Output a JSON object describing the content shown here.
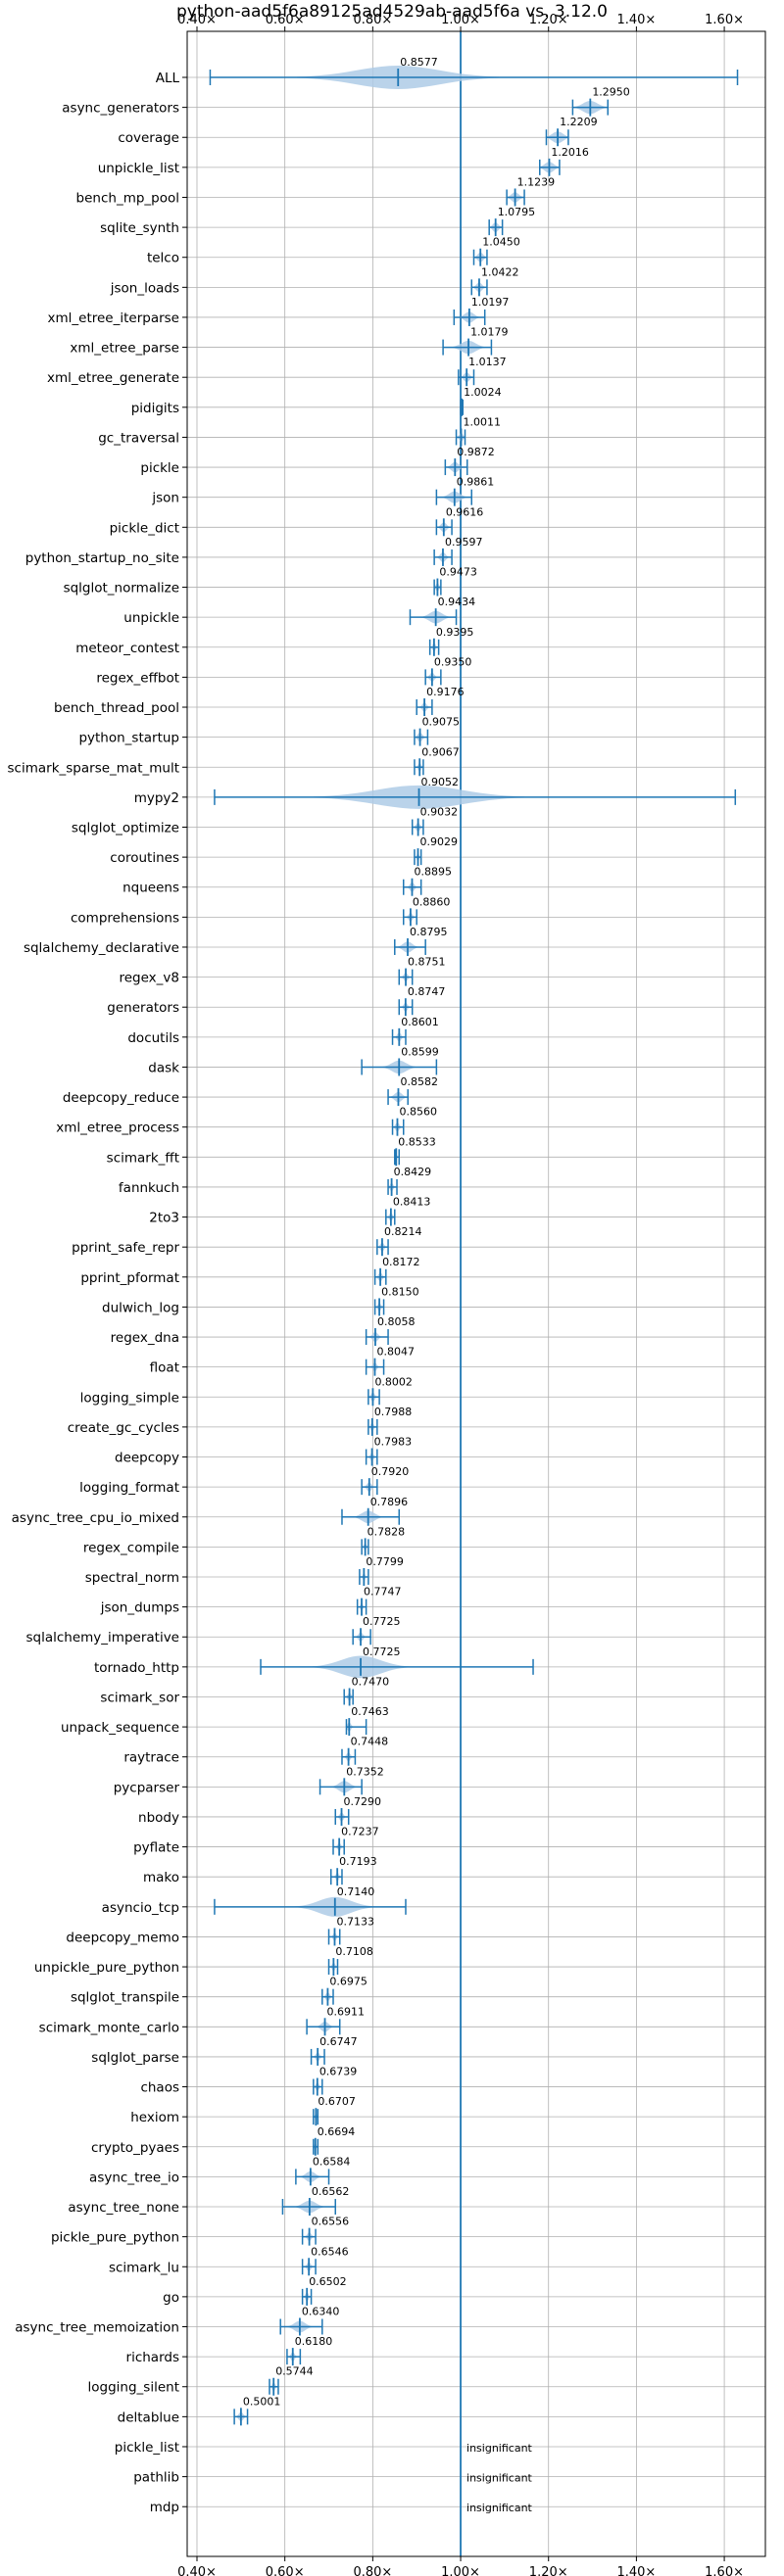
{
  "chart_data": {
    "type": "violin",
    "title": "python-aad5f6a89125ad4529ab-aad5f6a vs. 3.12.0",
    "xlim": [
      0.4,
      1.65
    ],
    "xticks": [
      0.4,
      0.6,
      0.8,
      1.0,
      1.2,
      1.4,
      1.6
    ],
    "xtick_labels": [
      "0.40×",
      "0.60×",
      "0.80×",
      "1.00×",
      "1.20×",
      "1.40×",
      "1.60×"
    ],
    "reference_line": 1.0,
    "grid": true,
    "color": "#1f77b4",
    "fill_color": "#aecbe6",
    "rows": [
      {
        "name": "ALL",
        "value": 0.8577,
        "min": 0.43,
        "max": 1.63,
        "spread": 0.23
      },
      {
        "name": "async_generators",
        "value": 1.295,
        "min": 1.255,
        "max": 1.335,
        "spread": 0.04
      },
      {
        "name": "coverage",
        "value": 1.2209,
        "min": 1.195,
        "max": 1.245,
        "spread": 0.03
      },
      {
        "name": "unpickle_list",
        "value": 1.2016,
        "min": 1.18,
        "max": 1.225,
        "spread": 0.025
      },
      {
        "name": "bench_mp_pool",
        "value": 1.1239,
        "min": 1.105,
        "max": 1.145,
        "spread": 0.02
      },
      {
        "name": "sqlite_synth",
        "value": 1.0795,
        "min": 1.065,
        "max": 1.095,
        "spread": 0.015
      },
      {
        "name": "telco",
        "value": 1.045,
        "min": 1.03,
        "max": 1.06,
        "spread": 0.015
      },
      {
        "name": "json_loads",
        "value": 1.0422,
        "min": 1.025,
        "max": 1.06,
        "spread": 0.015
      },
      {
        "name": "xml_etree_iterparse",
        "value": 1.0197,
        "min": 0.985,
        "max": 1.055,
        "spread": 0.025
      },
      {
        "name": "xml_etree_parse",
        "value": 1.0179,
        "min": 0.96,
        "max": 1.07,
        "spread": 0.04
      },
      {
        "name": "xml_etree_generate",
        "value": 1.0137,
        "min": 0.995,
        "max": 1.03,
        "spread": 0.015
      },
      {
        "name": "pidigits",
        "value": 1.0024,
        "min": 1.0,
        "max": 1.005,
        "spread": 0.003
      },
      {
        "name": "gc_traversal",
        "value": 1.0011,
        "min": 0.99,
        "max": 1.01,
        "spread": 0.01
      },
      {
        "name": "pickle",
        "value": 0.9872,
        "min": 0.965,
        "max": 1.015,
        "spread": 0.02
      },
      {
        "name": "json",
        "value": 0.9861,
        "min": 0.945,
        "max": 1.025,
        "spread": 0.03
      },
      {
        "name": "pickle_dict",
        "value": 0.9616,
        "min": 0.945,
        "max": 0.98,
        "spread": 0.015
      },
      {
        "name": "python_startup_no_site",
        "value": 0.9597,
        "min": 0.94,
        "max": 0.98,
        "spread": 0.015
      },
      {
        "name": "sqlglot_normalize",
        "value": 0.9473,
        "min": 0.94,
        "max": 0.955,
        "spread": 0.008
      },
      {
        "name": "unpickle",
        "value": 0.9434,
        "min": 0.885,
        "max": 0.99,
        "spread": 0.035
      },
      {
        "name": "meteor_contest",
        "value": 0.9395,
        "min": 0.93,
        "max": 0.95,
        "spread": 0.008
      },
      {
        "name": "regex_effbot",
        "value": 0.935,
        "min": 0.92,
        "max": 0.955,
        "spread": 0.012
      },
      {
        "name": "bench_thread_pool",
        "value": 0.9176,
        "min": 0.9,
        "max": 0.935,
        "spread": 0.012
      },
      {
        "name": "python_startup",
        "value": 0.9075,
        "min": 0.895,
        "max": 0.925,
        "spread": 0.012
      },
      {
        "name": "scimark_sparse_mat_mult",
        "value": 0.9067,
        "min": 0.895,
        "max": 0.915,
        "spread": 0.008
      },
      {
        "name": "mypy2",
        "value": 0.9052,
        "min": 0.44,
        "max": 1.625,
        "spread": 0.24
      },
      {
        "name": "sqlglot_optimize",
        "value": 0.9032,
        "min": 0.89,
        "max": 0.915,
        "spread": 0.01
      },
      {
        "name": "coroutines",
        "value": 0.9029,
        "min": 0.895,
        "max": 0.91,
        "spread": 0.006
      },
      {
        "name": "nqueens",
        "value": 0.8895,
        "min": 0.87,
        "max": 0.91,
        "spread": 0.012
      },
      {
        "name": "comprehensions",
        "value": 0.886,
        "min": 0.87,
        "max": 0.9,
        "spread": 0.01
      },
      {
        "name": "sqlalchemy_declarative",
        "value": 0.8795,
        "min": 0.85,
        "max": 0.92,
        "spread": 0.025
      },
      {
        "name": "regex_v8",
        "value": 0.8751,
        "min": 0.86,
        "max": 0.89,
        "spread": 0.01
      },
      {
        "name": "generators",
        "value": 0.8747,
        "min": 0.86,
        "max": 0.89,
        "spread": 0.01
      },
      {
        "name": "docutils",
        "value": 0.8601,
        "min": 0.845,
        "max": 0.875,
        "spread": 0.01
      },
      {
        "name": "dask",
        "value": 0.8599,
        "min": 0.775,
        "max": 0.945,
        "spread": 0.04
      },
      {
        "name": "deepcopy_reduce",
        "value": 0.8582,
        "min": 0.835,
        "max": 0.88,
        "spread": 0.02
      },
      {
        "name": "xml_etree_process",
        "value": 0.856,
        "min": 0.845,
        "max": 0.87,
        "spread": 0.01
      },
      {
        "name": "scimark_fft",
        "value": 0.8533,
        "min": 0.85,
        "max": 0.86,
        "spread": 0.004
      },
      {
        "name": "fannkuch",
        "value": 0.8429,
        "min": 0.835,
        "max": 0.855,
        "spread": 0.008
      },
      {
        "name": "2to3",
        "value": 0.8413,
        "min": 0.83,
        "max": 0.85,
        "spread": 0.008
      },
      {
        "name": "pprint_safe_repr",
        "value": 0.8214,
        "min": 0.81,
        "max": 0.835,
        "spread": 0.01
      },
      {
        "name": "pprint_pformat",
        "value": 0.8172,
        "min": 0.805,
        "max": 0.83,
        "spread": 0.01
      },
      {
        "name": "dulwich_log",
        "value": 0.815,
        "min": 0.805,
        "max": 0.825,
        "spread": 0.008
      },
      {
        "name": "regex_dna",
        "value": 0.8058,
        "min": 0.785,
        "max": 0.835,
        "spread": 0.015
      },
      {
        "name": "float",
        "value": 0.8047,
        "min": 0.785,
        "max": 0.825,
        "spread": 0.01
      },
      {
        "name": "logging_simple",
        "value": 0.8002,
        "min": 0.79,
        "max": 0.815,
        "spread": 0.01
      },
      {
        "name": "create_gc_cycles",
        "value": 0.7988,
        "min": 0.79,
        "max": 0.81,
        "spread": 0.008
      },
      {
        "name": "deepcopy",
        "value": 0.7983,
        "min": 0.785,
        "max": 0.81,
        "spread": 0.008
      },
      {
        "name": "logging_format",
        "value": 0.792,
        "min": 0.775,
        "max": 0.81,
        "spread": 0.012
      },
      {
        "name": "async_tree_cpu_io_mixed",
        "value": 0.7896,
        "min": 0.73,
        "max": 0.86,
        "spread": 0.035
      },
      {
        "name": "regex_compile",
        "value": 0.7828,
        "min": 0.775,
        "max": 0.79,
        "spread": 0.006
      },
      {
        "name": "spectral_norm",
        "value": 0.7799,
        "min": 0.77,
        "max": 0.79,
        "spread": 0.006
      },
      {
        "name": "json_dumps",
        "value": 0.7747,
        "min": 0.765,
        "max": 0.785,
        "spread": 0.006
      },
      {
        "name": "sqlalchemy_imperative",
        "value": 0.7725,
        "min": 0.755,
        "max": 0.795,
        "spread": 0.012
      },
      {
        "name": "tornado_http",
        "value": 0.7725,
        "min": 0.545,
        "max": 1.165,
        "spread": 0.11
      },
      {
        "name": "scimark_sor",
        "value": 0.747,
        "min": 0.735,
        "max": 0.755,
        "spread": 0.008
      },
      {
        "name": "unpack_sequence",
        "value": 0.7463,
        "min": 0.74,
        "max": 0.785,
        "spread": 0.01
      },
      {
        "name": "raytrace",
        "value": 0.7448,
        "min": 0.73,
        "max": 0.76,
        "spread": 0.01
      },
      {
        "name": "pycparser",
        "value": 0.7352,
        "min": 0.68,
        "max": 0.775,
        "spread": 0.03
      },
      {
        "name": "nbody",
        "value": 0.729,
        "min": 0.715,
        "max": 0.745,
        "spread": 0.01
      },
      {
        "name": "pyflate",
        "value": 0.7237,
        "min": 0.71,
        "max": 0.735,
        "spread": 0.008
      },
      {
        "name": "mako",
        "value": 0.7193,
        "min": 0.705,
        "max": 0.73,
        "spread": 0.008
      },
      {
        "name": "asyncio_tcp",
        "value": 0.714,
        "min": 0.44,
        "max": 0.875,
        "spread": 0.09
      },
      {
        "name": "deepcopy_memo",
        "value": 0.7133,
        "min": 0.7,
        "max": 0.725,
        "spread": 0.008
      },
      {
        "name": "unpickle_pure_python",
        "value": 0.7108,
        "min": 0.7,
        "max": 0.72,
        "spread": 0.008
      },
      {
        "name": "sqlglot_transpile",
        "value": 0.6975,
        "min": 0.685,
        "max": 0.71,
        "spread": 0.01
      },
      {
        "name": "scimark_monte_carlo",
        "value": 0.6911,
        "min": 0.65,
        "max": 0.725,
        "spread": 0.02
      },
      {
        "name": "sqlglot_parse",
        "value": 0.6747,
        "min": 0.66,
        "max": 0.69,
        "spread": 0.01
      },
      {
        "name": "chaos",
        "value": 0.6739,
        "min": 0.665,
        "max": 0.685,
        "spread": 0.008
      },
      {
        "name": "hexiom",
        "value": 0.6707,
        "min": 0.665,
        "max": 0.675,
        "spread": 0.005
      },
      {
        "name": "crypto_pyaes",
        "value": 0.6694,
        "min": 0.665,
        "max": 0.675,
        "spread": 0.005
      },
      {
        "name": "async_tree_io",
        "value": 0.6584,
        "min": 0.625,
        "max": 0.7,
        "spread": 0.025
      },
      {
        "name": "async_tree_none",
        "value": 0.6562,
        "min": 0.595,
        "max": 0.715,
        "spread": 0.035
      },
      {
        "name": "pickle_pure_python",
        "value": 0.6556,
        "min": 0.64,
        "max": 0.67,
        "spread": 0.01
      },
      {
        "name": "scimark_lu",
        "value": 0.6546,
        "min": 0.64,
        "max": 0.67,
        "spread": 0.01
      },
      {
        "name": "go",
        "value": 0.6502,
        "min": 0.64,
        "max": 0.66,
        "spread": 0.008
      },
      {
        "name": "async_tree_memoization",
        "value": 0.634,
        "min": 0.59,
        "max": 0.685,
        "spread": 0.03
      },
      {
        "name": "richards",
        "value": 0.618,
        "min": 0.605,
        "max": 0.635,
        "spread": 0.01
      },
      {
        "name": "logging_silent",
        "value": 0.5744,
        "min": 0.565,
        "max": 0.585,
        "spread": 0.008
      },
      {
        "name": "deltablue",
        "value": 0.5001,
        "min": 0.485,
        "max": 0.515,
        "spread": 0.012
      },
      {
        "name": "pickle_list",
        "insignificant": true,
        "note": "insignificant"
      },
      {
        "name": "pathlib",
        "insignificant": true,
        "note": "insignificant"
      },
      {
        "name": "mdp",
        "insignificant": true,
        "note": "insignificant"
      }
    ]
  }
}
